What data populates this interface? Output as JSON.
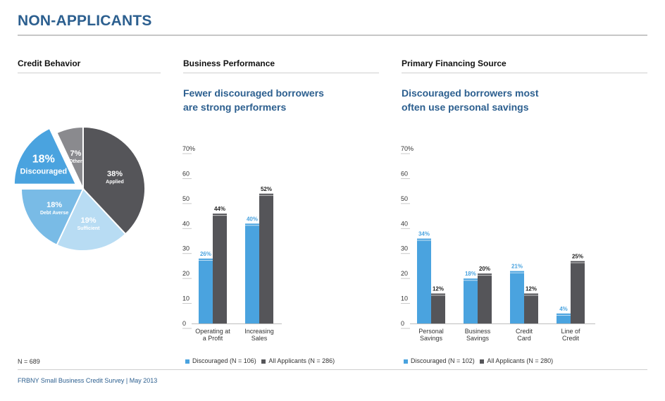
{
  "page": {
    "title": "NON-APPLICANTS",
    "footer": "FRBNY Small Business Credit Survey  |  May 2013"
  },
  "colors": {
    "blue": "#4aa3df",
    "dark": "#555559",
    "light_blue": "#79bbe6",
    "pale_blue": "#b8dcf3",
    "gray": "#8a8a8e",
    "title": "#2c5f8f"
  },
  "sections": {
    "credit": {
      "title": "Credit Behavior",
      "n_note": "N = 689"
    },
    "performance": {
      "title": "Business Performance",
      "subtitle_line1": "Fewer discouraged borrowers",
      "subtitle_line2": "are strong performers"
    },
    "financing": {
      "title": "Primary Financing Source",
      "subtitle_line1": "Discouraged borrowers most",
      "subtitle_line2": "often use personal savings"
    }
  },
  "chart_data": [
    {
      "type": "pie",
      "title": "Credit Behavior",
      "slices": [
        {
          "label": "Applied",
          "value": 38,
          "pct": "38%"
        },
        {
          "label": "Sufficient",
          "value": 19,
          "pct": "19%"
        },
        {
          "label": "Debt Averse",
          "value": 18,
          "pct": "18%"
        },
        {
          "label": "Discouraged",
          "value": 18,
          "pct": "18%",
          "exploded": true
        },
        {
          "label": "Other",
          "value": 7,
          "pct": "7%"
        }
      ]
    },
    {
      "type": "bar",
      "title": "Business Performance",
      "categories": [
        [
          "Operating at",
          "a Profit"
        ],
        [
          "Increasing",
          "Sales"
        ]
      ],
      "series": [
        {
          "name": "Discouraged (N = 106)",
          "values": [
            26,
            40
          ],
          "labels": [
            "26%",
            "40%"
          ]
        },
        {
          "name": "All Applicants (N = 286)",
          "values": [
            44,
            52
          ],
          "labels": [
            "44%",
            "52%"
          ]
        }
      ],
      "yticks": [
        "70%",
        "60",
        "50",
        "40",
        "30",
        "20",
        "10",
        "0"
      ],
      "ylim": [
        0,
        70
      ]
    },
    {
      "type": "bar",
      "title": "Primary Financing Source",
      "categories": [
        [
          "Personal",
          "Savings"
        ],
        [
          "Business",
          "Savings"
        ],
        [
          "Credit",
          "Card"
        ],
        [
          "Line of",
          "Credit"
        ]
      ],
      "series": [
        {
          "name": "Discouraged (N = 102)",
          "values": [
            34,
            18,
            21,
            4
          ],
          "labels": [
            "34%",
            "18%",
            "21%",
            "4%"
          ]
        },
        {
          "name": "All Applicants (N = 280)",
          "values": [
            12,
            20,
            12,
            25
          ],
          "labels": [
            "12%",
            "20%",
            "12%",
            "25%"
          ]
        }
      ],
      "yticks": [
        "70%",
        "60",
        "50",
        "40",
        "30",
        "20",
        "10",
        "0"
      ],
      "ylim": [
        0,
        70
      ]
    }
  ]
}
